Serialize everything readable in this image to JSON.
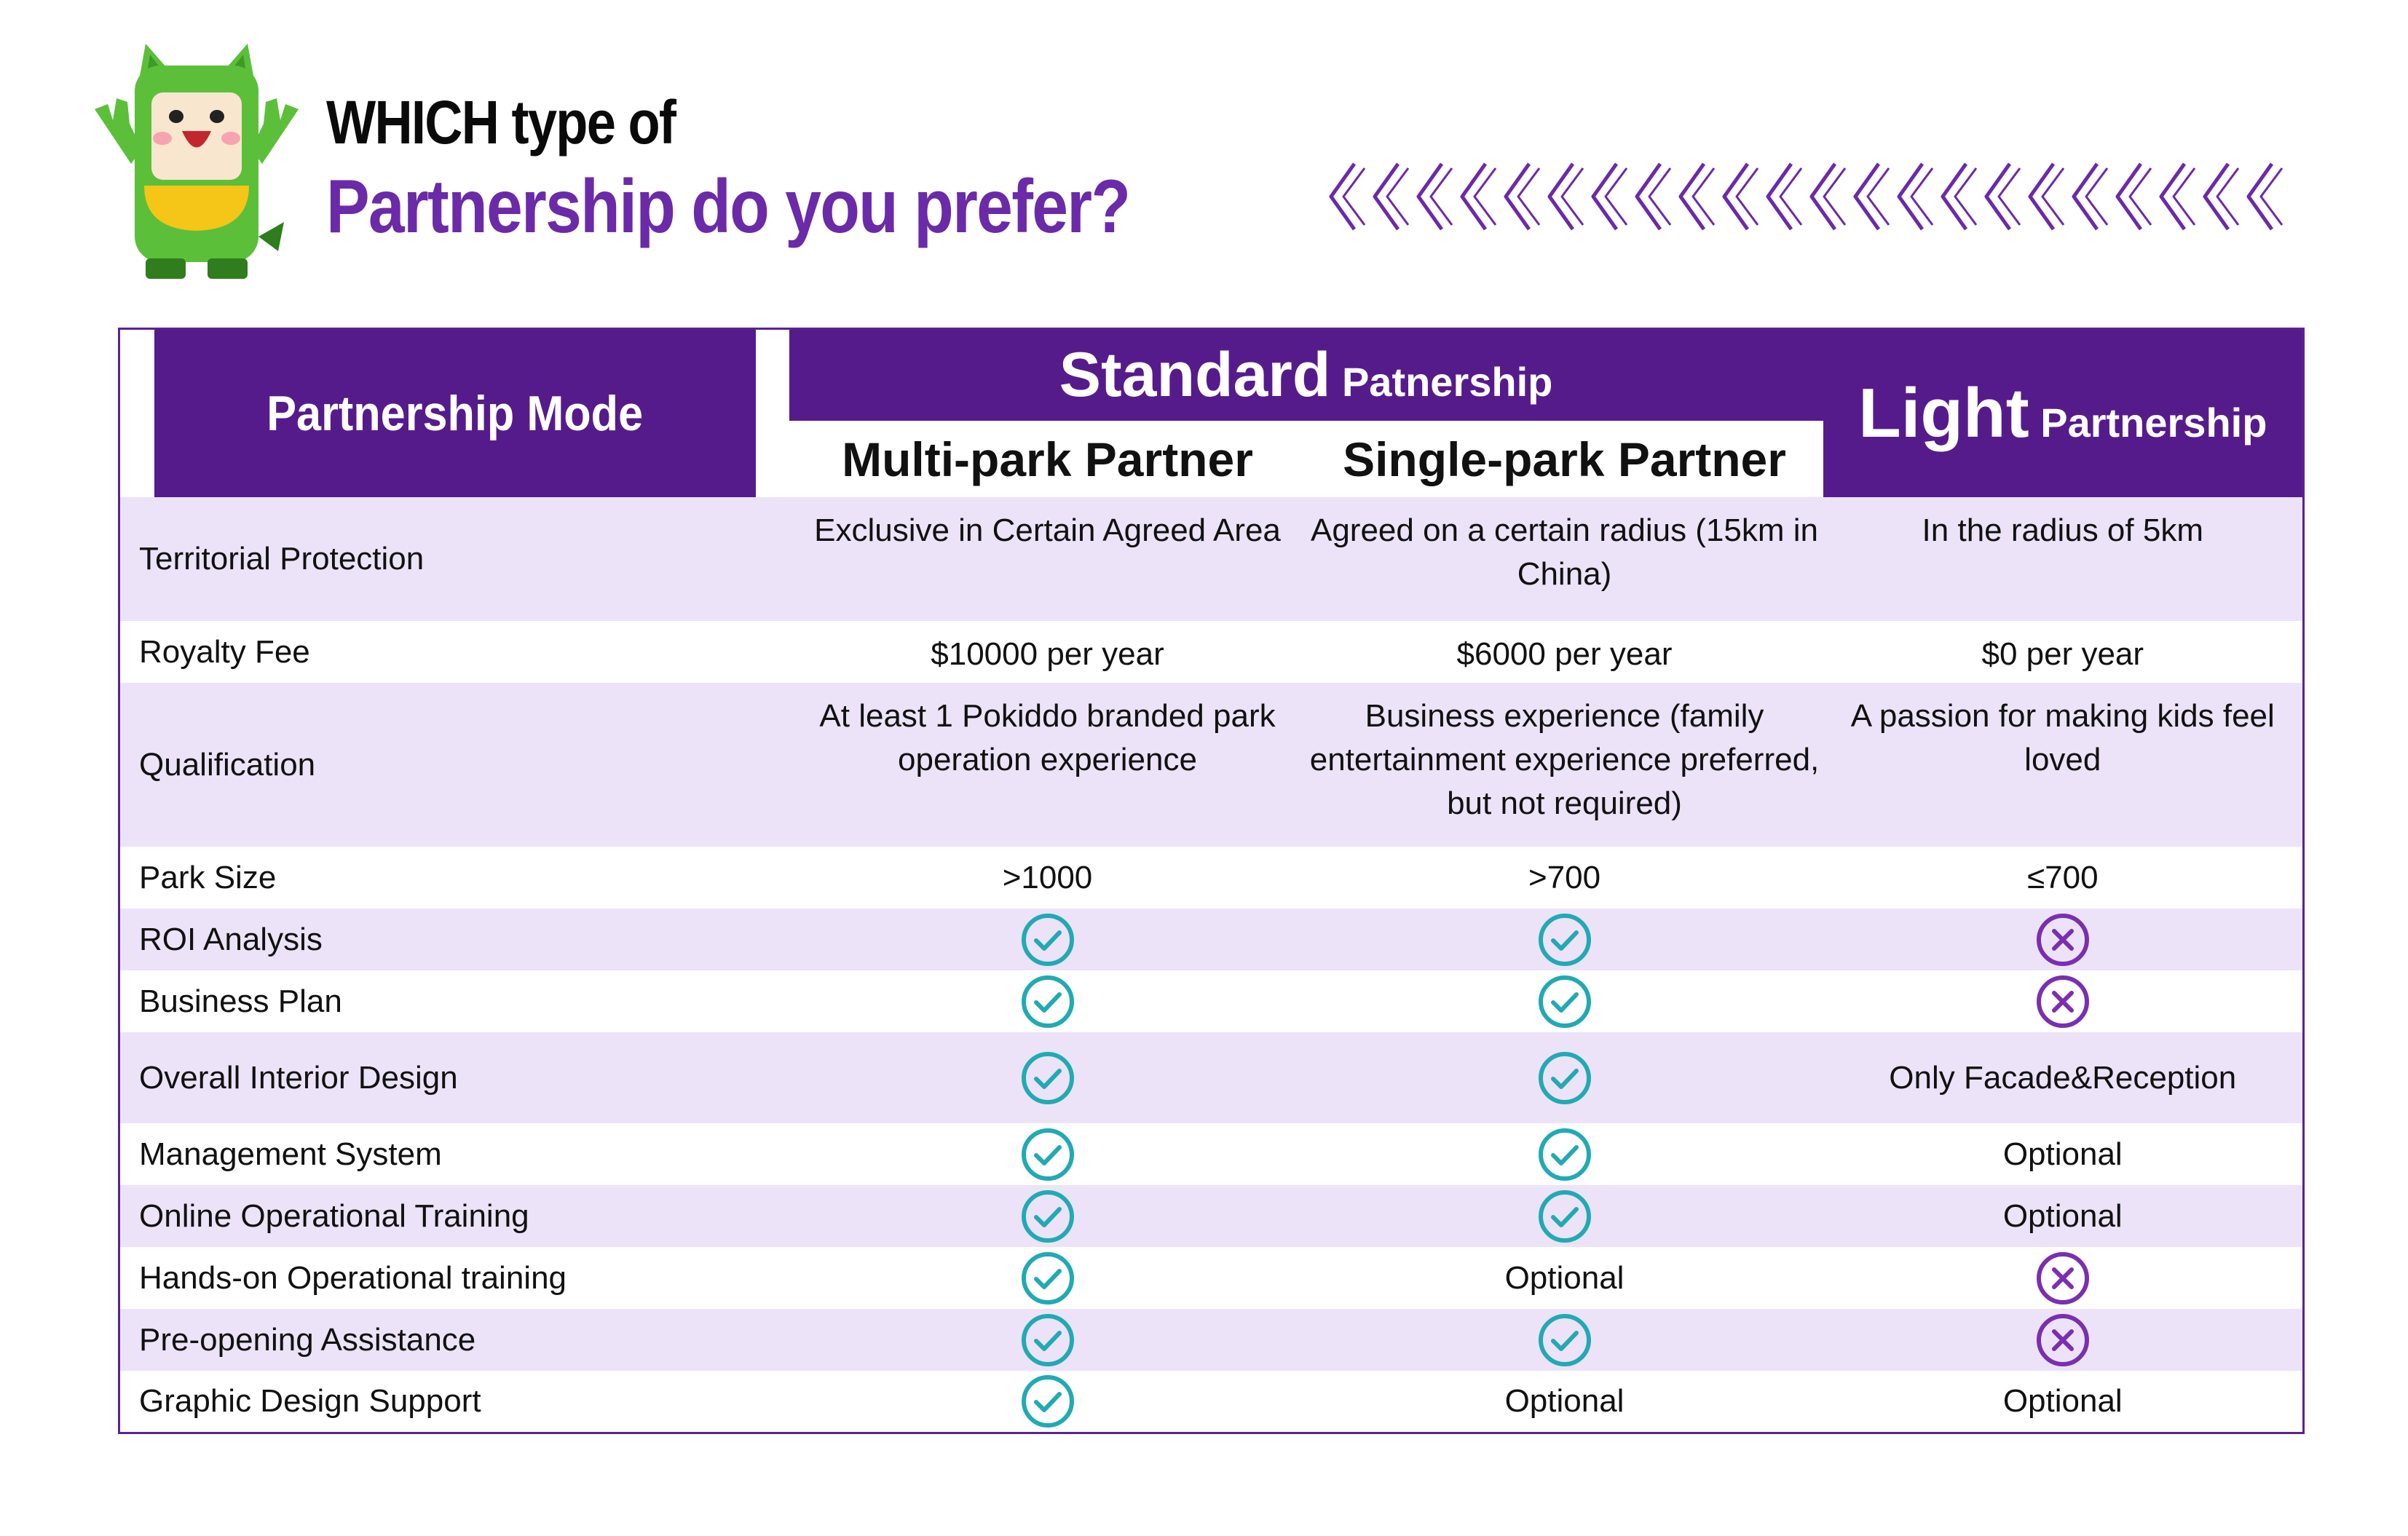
{
  "header": {
    "line1": "WHICH type of",
    "line2": "Partnership do you prefer?"
  },
  "colors": {
    "brand_purple": "#561b8b",
    "title_purple": "#6b2aa8",
    "row_shade": "#ece3f9",
    "check_teal": "#21aab3",
    "cross_purple": "#7a2fb0"
  },
  "table": {
    "mode_label": "Partnership Mode",
    "standard_big": "Standard",
    "standard_small": "Patnership",
    "light_big": "Light",
    "light_small": "Partnership",
    "multi_label": "Multi-park Partner",
    "single_label": "Single-park Partner",
    "rows": [
      {
        "label": "Territorial Protection",
        "multi": "Exclusive in Certain Agreed Area",
        "single": "Agreed on a certain radius (15km in China)",
        "light": "In the radius of 5km"
      },
      {
        "label": "Royalty Fee",
        "multi": "$10000 per year",
        "single": "$6000 per year",
        "light": "$0 per year"
      },
      {
        "label": "Qualification",
        "multi": "At least 1 Pokiddo branded park operation experience",
        "single": "Business experience (family entertainment experience preferred, but not required)",
        "light": "A passion for making kids feel loved"
      },
      {
        "label": "Park Size",
        "multi": ">1000",
        "single": ">700",
        "light": "≤700"
      },
      {
        "label": "ROI Analysis",
        "multi": "check-icon",
        "single": "check-icon",
        "light": "cross-icon"
      },
      {
        "label": "Business Plan",
        "multi": "check-icon",
        "single": "check-icon",
        "light": "cross-icon"
      },
      {
        "label": "Overall Interior Design",
        "multi": "check-icon",
        "single": "check-icon",
        "light": "Only Facade&Reception"
      },
      {
        "label": "Management System",
        "multi": "check-icon",
        "single": "check-icon",
        "light": "Optional"
      },
      {
        "label": "Online Operational Training",
        "multi": "check-icon",
        "single": "check-icon",
        "light": "Optional"
      },
      {
        "label": "Hands-on Operational training",
        "multi": "check-icon",
        "single": "Optional",
        "light": "cross-icon"
      },
      {
        "label": "Pre-opening Assistance",
        "multi": "check-icon",
        "single": "check-icon",
        "light": "cross-icon"
      },
      {
        "label": "Graphic Design Support",
        "multi": "check-icon",
        "single": "Optional",
        "light": "Optional"
      }
    ]
  }
}
